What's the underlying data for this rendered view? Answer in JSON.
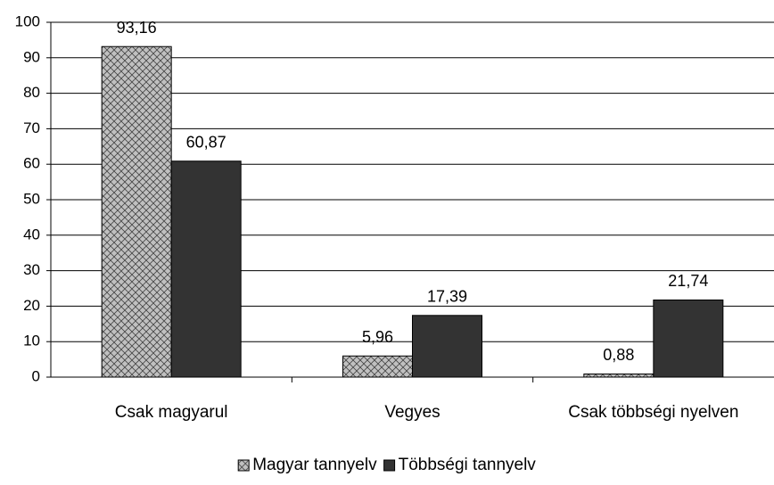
{
  "chart_data": {
    "type": "bar",
    "categories": [
      "Csak magyarul",
      "Vegyes",
      "Csak többségi nyelven"
    ],
    "series": [
      {
        "name": "Magyar tannyelv",
        "color": "#c0c0c0",
        "values": [
          93.16,
          5.96,
          0.88
        ],
        "value_labels": [
          "93,16",
          "5,96",
          "0,88"
        ]
      },
      {
        "name": "Többségi tannyelv",
        "color": "#333333",
        "values": [
          60.87,
          17.39,
          21.74
        ],
        "value_labels": [
          "60,87",
          "17,39",
          "21,74"
        ]
      }
    ],
    "ylim": [
      0,
      100
    ],
    "yticks": [
      0,
      10,
      20,
      30,
      40,
      50,
      60,
      70,
      80,
      90,
      100
    ],
    "grid": true,
    "legend": "bottom"
  }
}
